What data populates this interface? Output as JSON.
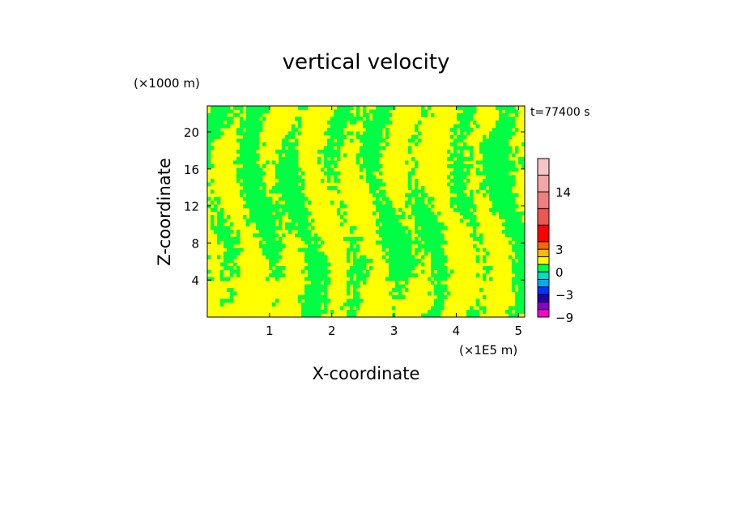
{
  "chart_data": {
    "type": "heatmap",
    "title": "vertical velocity",
    "xlabel": "X-coordinate",
    "ylabel": "Z-coordinate",
    "x_unit": "(×1E5 m)",
    "y_unit": "(×1000 m)",
    "time_label": "t=77400 s",
    "xlim": [
      0,
      5.1
    ],
    "ylim": [
      0,
      22.8
    ],
    "x_ticks": [
      1,
      2,
      3,
      4,
      5
    ],
    "y_ticks": [
      4,
      8,
      12,
      16,
      20
    ],
    "field_levels": {
      "low_color": "#ffff00",
      "high_color": "#00ff44",
      "description_values": [
        0,
        1
      ]
    },
    "colorbar": {
      "levels": [
        -9,
        -7,
        -5,
        -3,
        -2,
        -1,
        0,
        1,
        2,
        3,
        5,
        8,
        11,
        14,
        17,
        20
      ],
      "colors": [
        "#ff00cc",
        "#8800cc",
        "#2200aa",
        "#0033ff",
        "#00aaff",
        "#00ddcc",
        "#00ff44",
        "#ffff00",
        "#ffbb00",
        "#ff6600",
        "#ff0000",
        "#ee5555",
        "#f08080",
        "#f4a6a6",
        "#f8c4c4"
      ],
      "tick_labels": [
        {
          "value": 14,
          "label": "14"
        },
        {
          "value": 3,
          "label": "3"
        },
        {
          "value": 0,
          "label": "0"
        },
        {
          "value": -3,
          "label": "−3"
        },
        {
          "value": -9,
          "label": "−9"
        }
      ]
    }
  }
}
